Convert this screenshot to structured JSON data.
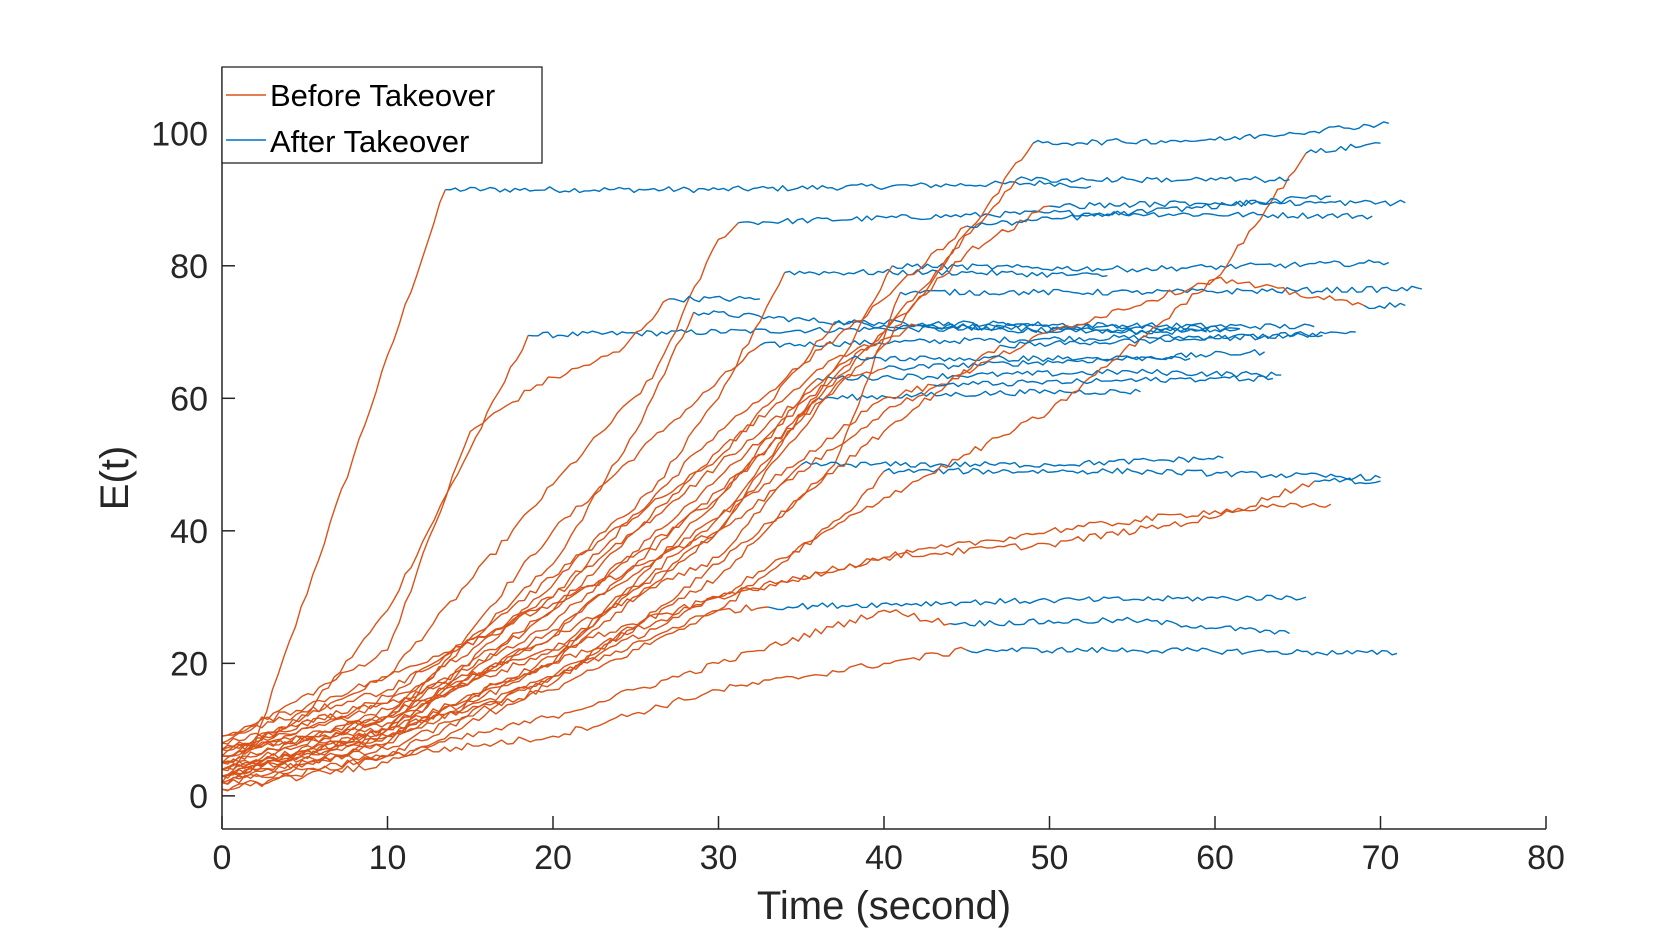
{
  "chart_data": {
    "type": "line",
    "title": "",
    "xlabel": "Time (second)",
    "ylabel": "E(t)",
    "xlim": [
      0,
      80
    ],
    "ylim": [
      -5,
      110
    ],
    "xticks": [
      0,
      10,
      20,
      30,
      40,
      50,
      60,
      70,
      80
    ],
    "yticks": [
      0,
      20,
      40,
      60,
      80,
      100
    ],
    "grid": false,
    "legend_position": "top-left",
    "series_styles": {
      "before": {
        "name": "Before Takeover",
        "color": "#D95319"
      },
      "after": {
        "name": "After Takeover",
        "color": "#0072BD"
      }
    },
    "trials": [
      {
        "t0": 0,
        "e0": 2,
        "before": [
          [
            2,
            8
          ],
          [
            13.5,
            91.5
          ]
        ],
        "after": [
          [
            13.5,
            91.5
          ],
          [
            30,
            91.5
          ],
          [
            50,
            92.5
          ],
          [
            52.5,
            92
          ]
        ]
      },
      {
        "t0": 0,
        "e0": 5,
        "before": [
          [
            5,
            12
          ],
          [
            10,
            28
          ],
          [
            18.5,
            69.5
          ]
        ],
        "after": [
          [
            18.5,
            69.5
          ],
          [
            40,
            70.5
          ],
          [
            59.5,
            70
          ]
        ]
      },
      {
        "t0": 0,
        "e0": 3,
        "before": [
          [
            10,
            10
          ],
          [
            20,
            40
          ],
          [
            27,
            56
          ],
          [
            32.5,
            68
          ]
        ],
        "after": [
          [
            32.5,
            68
          ],
          [
            50,
            69
          ],
          [
            66.5,
            69.5
          ]
        ]
      },
      {
        "t0": 0,
        "e0": 6,
        "before": [
          [
            10,
            18
          ],
          [
            20,
            47
          ],
          [
            26,
            63
          ],
          [
            30,
            84
          ],
          [
            31.2,
            86.5
          ]
        ],
        "after": [
          [
            31.2,
            86.5
          ],
          [
            50,
            88
          ],
          [
            69.5,
            87.5
          ]
        ]
      },
      {
        "t0": 0,
        "e0": 4,
        "before": [
          [
            10,
            12
          ],
          [
            20,
            35
          ],
          [
            25,
            55
          ],
          [
            28.5,
            73
          ]
        ],
        "after": [
          [
            28.5,
            73
          ],
          [
            40,
            71
          ],
          [
            61.5,
            70.5
          ]
        ]
      },
      {
        "t0": 0,
        "e0": 8,
        "before": [
          [
            10,
            22
          ],
          [
            15,
            55
          ],
          [
            19,
            62
          ],
          [
            24,
            67
          ],
          [
            27,
            75
          ]
        ],
        "after": [
          [
            27,
            75
          ],
          [
            32.5,
            75
          ]
        ]
      },
      {
        "t0": 0,
        "e0": 2,
        "before": [
          [
            10,
            8
          ],
          [
            22,
            37
          ],
          [
            30,
            51
          ],
          [
            33,
            59
          ],
          [
            37,
            71.5
          ]
        ],
        "after": [
          [
            37,
            71.5
          ],
          [
            55,
            71
          ],
          [
            66,
            70.8
          ]
        ]
      },
      {
        "t0": 0,
        "e0": 7,
        "before": [
          [
            10,
            15
          ],
          [
            20,
            33
          ],
          [
            26,
            46
          ],
          [
            30,
            60
          ],
          [
            34,
            79
          ]
        ],
        "after": [
          [
            34,
            79
          ],
          [
            45,
            79
          ],
          [
            53.5,
            78.5
          ]
        ]
      },
      {
        "t0": 0,
        "e0": 3,
        "before": [
          [
            10,
            10
          ],
          [
            20,
            25
          ],
          [
            30,
            42
          ],
          [
            34,
            54
          ],
          [
            36,
            60
          ]
        ],
        "after": [
          [
            36,
            60
          ],
          [
            50,
            61
          ],
          [
            55.5,
            61
          ]
        ]
      },
      {
        "t0": 0,
        "e0": 5,
        "before": [
          [
            10,
            12
          ],
          [
            20,
            28
          ],
          [
            30,
            45
          ],
          [
            36,
            63
          ]
        ],
        "after": [
          [
            36,
            63
          ],
          [
            55,
            64
          ],
          [
            64,
            63.5
          ]
        ]
      },
      {
        "t0": 0,
        "e0": 9,
        "before": [
          [
            10,
            18
          ],
          [
            20,
            29
          ],
          [
            30,
            40
          ],
          [
            37.5,
            63
          ],
          [
            40,
            64.5
          ]
        ],
        "after": [
          [
            40,
            64.5
          ],
          [
            55,
            66
          ],
          [
            63,
            67
          ]
        ]
      },
      {
        "t0": 0,
        "e0": 4,
        "before": [
          [
            10,
            9
          ],
          [
            20,
            20
          ],
          [
            30,
            40
          ],
          [
            38,
            68
          ],
          [
            40.5,
            80
          ]
        ],
        "after": [
          [
            40.5,
            80
          ],
          [
            55,
            79.5
          ],
          [
            70.5,
            80.5
          ]
        ]
      },
      {
        "t0": 0,
        "e0": 1,
        "before": [
          [
            10,
            6
          ],
          [
            20,
            18
          ],
          [
            30,
            33
          ],
          [
            37,
            50
          ],
          [
            41,
            76
          ]
        ],
        "after": [
          [
            41,
            76
          ],
          [
            55,
            76
          ],
          [
            72.5,
            76.5
          ]
        ]
      },
      {
        "t0": 0,
        "e0": 6,
        "before": [
          [
            10,
            12
          ],
          [
            20,
            24
          ],
          [
            30,
            36
          ],
          [
            35,
            50
          ]
        ],
        "after": [
          [
            35,
            50
          ],
          [
            50,
            50
          ],
          [
            60.5,
            51
          ]
        ]
      },
      {
        "t0": 0,
        "e0": 3,
        "before": [
          [
            10,
            7
          ],
          [
            20,
            18
          ],
          [
            30,
            28
          ],
          [
            38,
            43
          ],
          [
            40,
            49
          ]
        ],
        "after": [
          [
            40,
            49
          ],
          [
            55,
            49
          ],
          [
            70,
            48
          ]
        ]
      },
      {
        "t0": 0,
        "e0": 7,
        "before": [
          [
            10,
            10
          ],
          [
            20,
            16
          ],
          [
            30,
            28
          ],
          [
            33,
            28.5
          ]
        ],
        "after": [
          [
            33,
            28.5
          ],
          [
            50,
            29.5
          ],
          [
            65.5,
            30
          ]
        ]
      },
      {
        "t0": 0,
        "e0": 2,
        "before": [
          [
            10,
            6
          ],
          [
            20,
            12
          ],
          [
            30,
            20
          ],
          [
            40,
            28
          ],
          [
            44,
            26
          ]
        ],
        "after": [
          [
            44,
            26
          ],
          [
            55,
            26.5
          ],
          [
            64.5,
            24.5
          ]
        ]
      },
      {
        "t0": 0,
        "e0": 5,
        "before": [
          [
            10,
            6
          ],
          [
            20,
            9
          ],
          [
            30,
            16
          ],
          [
            40,
            20
          ],
          [
            45,
            22
          ]
        ],
        "after": [
          [
            45,
            22
          ],
          [
            55,
            22
          ],
          [
            71,
            21.5
          ]
        ]
      },
      {
        "t0": 0,
        "e0": 8,
        "before": [
          [
            10,
            14
          ],
          [
            20,
            22
          ],
          [
            30,
            30
          ],
          [
            40,
            36
          ],
          [
            50,
            40
          ],
          [
            60,
            43
          ],
          [
            67,
            44
          ]
        ],
        "after": [
          [
            67,
            44
          ]
        ]
      },
      {
        "t0": 0,
        "e0": 4,
        "before": [
          [
            10,
            10
          ],
          [
            20,
            20
          ],
          [
            30,
            30
          ],
          [
            40,
            45
          ],
          [
            50,
            58
          ],
          [
            60,
            78
          ],
          [
            65.5,
            97
          ]
        ],
        "after": [
          [
            65.5,
            97
          ],
          [
            70,
            98.5
          ]
        ]
      },
      {
        "t0": 0,
        "e0": 6,
        "before": [
          [
            10,
            12
          ],
          [
            20,
            22
          ],
          [
            30,
            40
          ],
          [
            40,
            58
          ],
          [
            50,
            70
          ],
          [
            60,
            78
          ],
          [
            69,
            74
          ]
        ],
        "after": [
          [
            69,
            74
          ],
          [
            71.5,
            74
          ]
        ]
      },
      {
        "t0": 0,
        "e0": 3,
        "before": [
          [
            10,
            9
          ],
          [
            20,
            18
          ],
          [
            30,
            30
          ],
          [
            40,
            36
          ],
          [
            50,
            38
          ],
          [
            60,
            42
          ],
          [
            66,
            47.5
          ]
        ],
        "after": [
          [
            66,
            47.5
          ],
          [
            70,
            47.5
          ]
        ]
      },
      {
        "t0": 0,
        "e0": 5,
        "before": [
          [
            10,
            11
          ],
          [
            20,
            24
          ],
          [
            30,
            46
          ],
          [
            40,
            68
          ],
          [
            49,
            98.5
          ]
        ],
        "after": [
          [
            49,
            98.5
          ],
          [
            60,
            99
          ],
          [
            70.5,
            101.5
          ]
        ]
      },
      {
        "t0": 0,
        "e0": 7,
        "before": [
          [
            10,
            13
          ],
          [
            20,
            26
          ],
          [
            30,
            48
          ],
          [
            40,
            70
          ],
          [
            48,
            93
          ]
        ],
        "after": [
          [
            48,
            93
          ],
          [
            55,
            93
          ],
          [
            64.5,
            93
          ]
        ]
      },
      {
        "t0": 0,
        "e0": 2,
        "before": [
          [
            10,
            8
          ],
          [
            20,
            20
          ],
          [
            30,
            45
          ],
          [
            40,
            70
          ],
          [
            45,
            82
          ],
          [
            50,
            89
          ]
        ],
        "after": [
          [
            50,
            89
          ],
          [
            60,
            89.5
          ],
          [
            71.5,
            89.5
          ]
        ]
      },
      {
        "t0": 0,
        "e0": 9,
        "before": [
          [
            10,
            16
          ],
          [
            20,
            30
          ],
          [
            30,
            55
          ],
          [
            40,
            75
          ],
          [
            45,
            86
          ]
        ],
        "after": [
          [
            45,
            86
          ],
          [
            55,
            88
          ],
          [
            67,
            90.5
          ]
        ]
      },
      {
        "t0": 0,
        "e0": 4,
        "before": [
          [
            10,
            10
          ],
          [
            20,
            28
          ],
          [
            30,
            52
          ],
          [
            37,
            66
          ],
          [
            42,
            71
          ]
        ],
        "after": [
          [
            42,
            71
          ],
          [
            54,
            70
          ],
          [
            61.5,
            70.5
          ]
        ]
      },
      {
        "t0": 0,
        "e0": 6,
        "before": [
          [
            10,
            14
          ],
          [
            20,
            30
          ],
          [
            30,
            50
          ],
          [
            38,
            66
          ]
        ],
        "after": [
          [
            38,
            66
          ],
          [
            52,
            66
          ],
          [
            58.5,
            66
          ]
        ]
      },
      {
        "t0": 0,
        "e0": 1,
        "before": [
          [
            10,
            5
          ],
          [
            20,
            17
          ],
          [
            30,
            35
          ],
          [
            40,
            55
          ],
          [
            47,
            68
          ]
        ],
        "after": [
          [
            47,
            68
          ],
          [
            60,
            69
          ],
          [
            68.5,
            70
          ]
        ]
      },
      {
        "t0": 0,
        "e0": 3,
        "before": [
          [
            10,
            9
          ],
          [
            20,
            21
          ],
          [
            30,
            42
          ],
          [
            40,
            60
          ],
          [
            43,
            62
          ]
        ],
        "after": [
          [
            43,
            62
          ],
          [
            60,
            63
          ],
          [
            63.5,
            63
          ]
        ]
      }
    ],
    "legend": [
      "Before Takeover",
      "After Takeover"
    ]
  }
}
